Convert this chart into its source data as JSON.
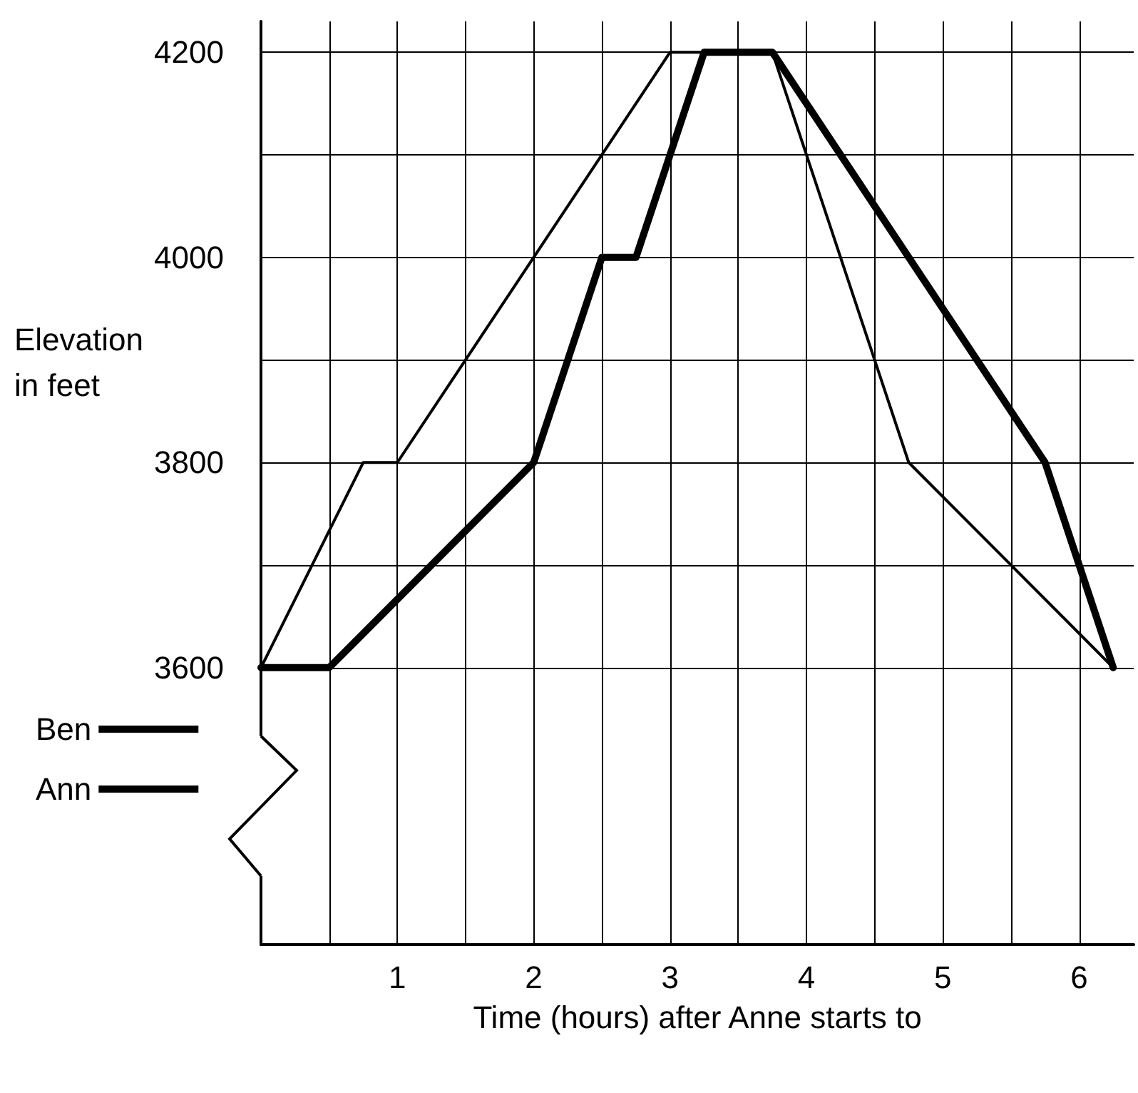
{
  "chart_data": {
    "type": "line",
    "xlabel": "Time (hours) after Anne starts to",
    "ylabel": "Elevation in feet",
    "xlim": [
      0,
      6.4
    ],
    "xticks": [
      {
        "value": 0,
        "label": null
      },
      {
        "value": 0.5,
        "label": null
      },
      1,
      {
        "value": 1.5,
        "label": null
      },
      2,
      {
        "value": 2.5,
        "label": null
      },
      3,
      {
        "value": 3.5,
        "label": null
      },
      4,
      {
        "value": 4.5,
        "label": null
      },
      5,
      {
        "value": 5.5,
        "label": null
      },
      6
    ],
    "ylim": [
      3330,
      4230
    ],
    "yticks": [
      3600,
      {
        "value": 3700,
        "label": null
      },
      3800,
      {
        "value": 3900,
        "label": null
      },
      4000,
      {
        "value": 4100,
        "label": null
      },
      4200
    ],
    "series": [
      {
        "name": "Ben",
        "color": "#000000",
        "x": [
          0,
          0.5,
          2,
          2.5,
          2.75,
          3.25,
          3.75,
          5.75,
          6.25
        ],
        "values": [
          3600,
          3600,
          3800,
          4000,
          4000,
          4200,
          4200,
          3800,
          3600
        ]
      },
      {
        "name": "Ann",
        "color": "#000000",
        "x": [
          0,
          0.75,
          1,
          3,
          3.75,
          4.75,
          6.25
        ],
        "values": [
          3600,
          3800,
          3800,
          4200,
          4200,
          3800,
          3600
        ]
      }
    ],
    "grid": true,
    "legend": "bottom left",
    "marker": "none",
    "line_style": "solid"
  }
}
